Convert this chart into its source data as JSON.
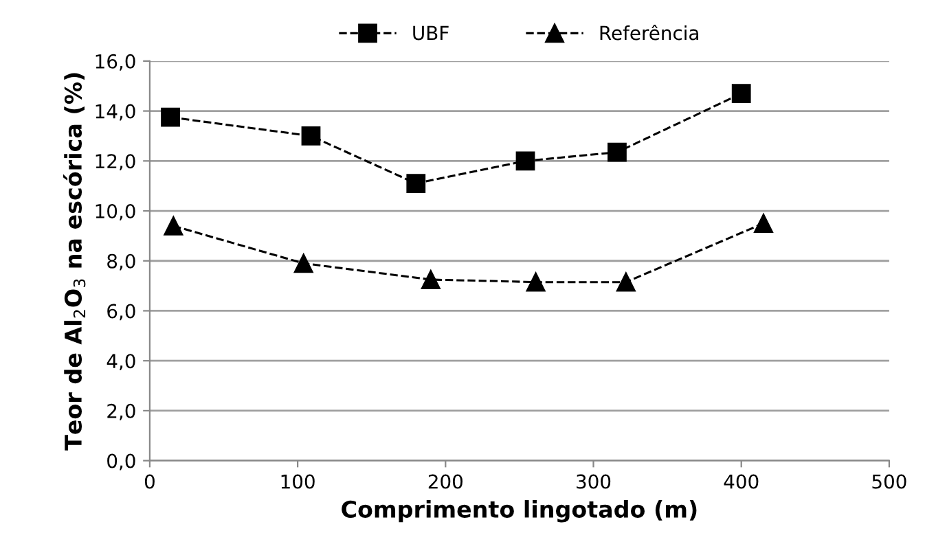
{
  "chart_data": {
    "type": "line",
    "xlabel": "Comprimento lingotado (m)",
    "ylabel": "Teor de Al$_{2}$O$_{3}$ na escórica (%)",
    "series": [
      {
        "name": "UBF",
        "color": "#000000",
        "marker": "square",
        "x": [
          14,
          109,
          180,
          254,
          316,
          400
        ],
        "values": [
          13.75,
          13.0,
          11.1,
          12.0,
          12.35,
          14.7
        ]
      },
      {
        "name": "Referência",
        "color": "#000000",
        "marker": "triangle",
        "x": [
          16,
          104,
          190,
          261,
          322,
          415
        ],
        "values": [
          9.4,
          7.9,
          7.25,
          7.15,
          7.15,
          9.5
        ]
      }
    ],
    "xlim": [
      0,
      500
    ],
    "xticks": [
      0,
      100,
      200,
      300,
      400,
      500
    ],
    "ylim": [
      0,
      16
    ],
    "yticks": [
      {
        "value": 0,
        "label": "0,0"
      },
      {
        "value": 2,
        "label": "2,0"
      },
      {
        "value": 4,
        "label": "4,0"
      },
      {
        "value": 6,
        "label": "6,0"
      },
      {
        "value": 8,
        "label": "8,0"
      },
      {
        "value": 10,
        "label": "10,0"
      },
      {
        "value": 12,
        "label": "12,0"
      },
      {
        "value": 14,
        "label": "14,0"
      },
      {
        "value": 16,
        "label": "16,0"
      }
    ],
    "grid": "y",
    "legend": "top",
    "line_style": "dashed"
  }
}
